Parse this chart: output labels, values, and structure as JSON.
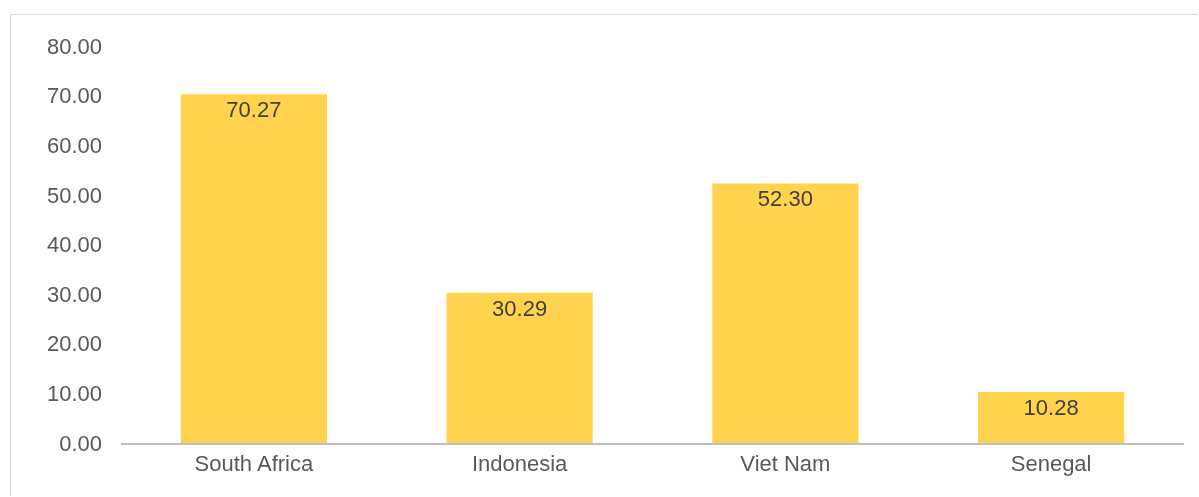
{
  "chart_data": {
    "type": "bar",
    "categories": [
      "South Africa",
      "Indonesia",
      "Viet Nam",
      "Senegal"
    ],
    "values": [
      70.27,
      30.29,
      52.3,
      10.28
    ],
    "value_labels": [
      "70.27",
      "30.29",
      "52.30",
      "10.28"
    ],
    "color": "#ffd34e",
    "ylim": [
      0,
      80
    ],
    "yticks": [
      {
        "value": 0,
        "label": "0.00"
      },
      {
        "value": 10,
        "label": "10.00"
      },
      {
        "value": 20,
        "label": "20.00"
      },
      {
        "value": 30,
        "label": "30.00"
      },
      {
        "value": 40,
        "label": "40.00"
      },
      {
        "value": 50,
        "label": "50.00"
      },
      {
        "value": 60,
        "label": "60.00"
      },
      {
        "value": 70,
        "label": "70.00"
      },
      {
        "value": 80,
        "label": "80.00"
      }
    ],
    "grid": false
  }
}
